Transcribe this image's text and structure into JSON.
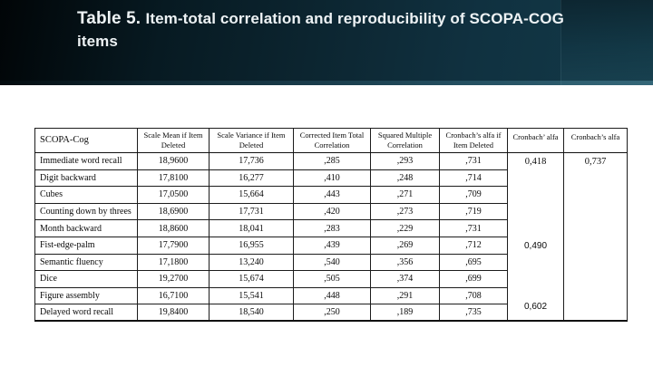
{
  "slide": {
    "title_prefix": "Table 5. ",
    "title_rest": "Item-total correlation and reproducibility of SCOPA-COG items",
    "colors": {
      "banner_dark": "#010507",
      "banner_teal": "#133a48",
      "title_text": "#edf2f4",
      "table_border": "#1c1c1c",
      "body_bg": "#ffffff"
    }
  },
  "table": {
    "columns": [
      "SCOPA-Cog",
      "Scale Mean if Item Deleted",
      "Scale Variance if Item Deleted",
      "Corrected Item Total Correlation",
      "Squared Multiple Correlation",
      "Cronbach’s alfa if Item Deleted",
      "Cronbach’ alfa",
      "Cronbach’s alfa"
    ],
    "rows": [
      {
        "label": "Immediate word recall",
        "values": [
          "18,9600",
          "17,736",
          ",285",
          ",293",
          ",731"
        ]
      },
      {
        "label": "Digit backward",
        "values": [
          "17,8100",
          "16,277",
          ",410",
          ",248",
          ",714"
        ]
      },
      {
        "label": "Cubes",
        "values": [
          "17,0500",
          "15,664",
          ",443",
          ",271",
          ",709"
        ]
      },
      {
        "label": "Counting down by threes",
        "values": [
          "18,6900",
          "17,731",
          ",420",
          ",273",
          ",719"
        ]
      },
      {
        "label": "Month backward",
        "values": [
          "18,8600",
          "18,041",
          ",283",
          ",229",
          ",731"
        ]
      },
      {
        "label": "Fist-edge-palm",
        "values": [
          "17,7900",
          "16,955",
          ",439",
          ",269",
          ",712"
        ]
      },
      {
        "label": "Semantic fluency",
        "values": [
          "17,1800",
          "13,240",
          ",540",
          ",356",
          ",695"
        ]
      },
      {
        "label": "Dice",
        "values": [
          "19,2700",
          "15,674",
          ",505",
          ",374",
          ",699"
        ]
      },
      {
        "label": "Figure assembly",
        "values": [
          "16,7100",
          "15,541",
          ",448",
          ",291",
          ",708"
        ]
      },
      {
        "label": "Delayed word recall",
        "values": [
          "19,8400",
          "18,540",
          ",250",
          ",189",
          ",735"
        ]
      }
    ],
    "cronbach_alfa_values": [
      "0,418",
      "0,490",
      "0,602"
    ],
    "cronbach_total": "0,737"
  }
}
